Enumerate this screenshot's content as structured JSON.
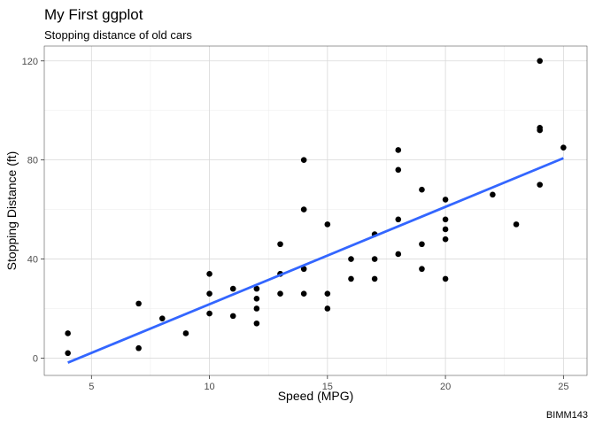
{
  "chart_data": {
    "type": "scatter",
    "title": "My First ggplot",
    "subtitle": "Stopping distance of old cars",
    "xlabel": "Speed (MPG)",
    "ylabel": "Stopping Distance (ft)",
    "caption": "BIMM143",
    "xlim": [
      3,
      26
    ],
    "ylim": [
      -7,
      126
    ],
    "xticks": [
      5,
      10,
      15,
      20,
      25
    ],
    "xtick_labels": [
      "5",
      "10",
      "15",
      "20",
      "25"
    ],
    "yticks": [
      0,
      40,
      80,
      120
    ],
    "ytick_labels": [
      "0",
      "40",
      "80",
      "120"
    ],
    "grid": true,
    "legend": "none",
    "point_color": "#000000",
    "fit_line_color": "#3366FF",
    "series": [
      {
        "type": "scatter",
        "points": [
          [
            4,
            2
          ],
          [
            4,
            10
          ],
          [
            7,
            4
          ],
          [
            7,
            22
          ],
          [
            8,
            16
          ],
          [
            9,
            10
          ],
          [
            10,
            18
          ],
          [
            10,
            26
          ],
          [
            10,
            34
          ],
          [
            11,
            17
          ],
          [
            11,
            28
          ],
          [
            12,
            14
          ],
          [
            12,
            20
          ],
          [
            12,
            24
          ],
          [
            12,
            28
          ],
          [
            13,
            26
          ],
          [
            13,
            34
          ],
          [
            13,
            34
          ],
          [
            13,
            46
          ],
          [
            14,
            26
          ],
          [
            14,
            36
          ],
          [
            14,
            60
          ],
          [
            14,
            80
          ],
          [
            15,
            20
          ],
          [
            15,
            26
          ],
          [
            15,
            54
          ],
          [
            16,
            32
          ],
          [
            16,
            40
          ],
          [
            17,
            32
          ],
          [
            17,
            40
          ],
          [
            17,
            50
          ],
          [
            18,
            42
          ],
          [
            18,
            56
          ],
          [
            18,
            76
          ],
          [
            18,
            84
          ],
          [
            19,
            36
          ],
          [
            19,
            46
          ],
          [
            19,
            68
          ],
          [
            20,
            32
          ],
          [
            20,
            48
          ],
          [
            20,
            52
          ],
          [
            20,
            56
          ],
          [
            20,
            64
          ],
          [
            22,
            66
          ],
          [
            23,
            54
          ],
          [
            24,
            70
          ],
          [
            24,
            92
          ],
          [
            24,
            93
          ],
          [
            24,
            120
          ],
          [
            25,
            85
          ]
        ]
      },
      {
        "type": "line",
        "method": "linear fit",
        "x": [
          4,
          25
        ],
        "y": [
          -1.85,
          80.73
        ]
      }
    ]
  }
}
